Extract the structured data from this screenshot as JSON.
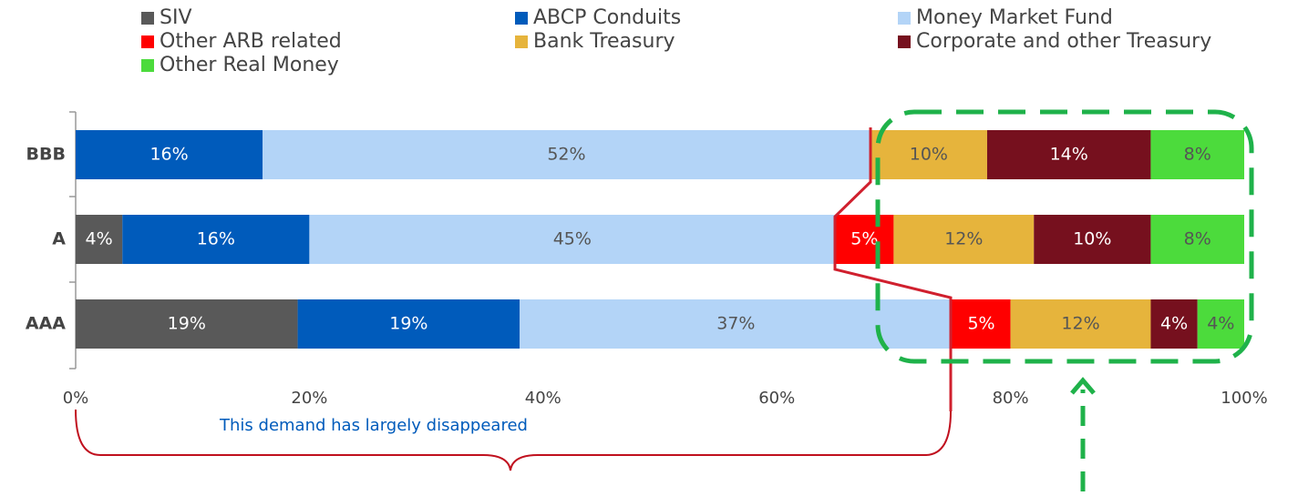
{
  "chart_data": {
    "type": "stacked_barh",
    "categories": [
      "BBB",
      "A",
      "AAA"
    ],
    "series": [
      {
        "name": "SIV",
        "color": "#595959",
        "values": [
          0,
          4,
          19
        ],
        "value_labels": [
          null,
          "4%",
          "19%"
        ]
      },
      {
        "name": "ABCP Conduits",
        "color": "#005bbb",
        "values": [
          16,
          16,
          19
        ],
        "value_labels": [
          "16%",
          "16%",
          "19%"
        ]
      },
      {
        "name": "Money Market Fund",
        "color": "#b3d4f7",
        "values": [
          52,
          45,
          37
        ],
        "value_labels": [
          "52%",
          "45%",
          "37%"
        ]
      },
      {
        "name": "Other ARB related",
        "color": "#ff0000",
        "values": [
          0,
          5,
          5
        ],
        "value_labels": [
          null,
          "5%",
          "5%"
        ]
      },
      {
        "name": "Bank Treasury",
        "color": "#e6b43c",
        "values": [
          10,
          12,
          12
        ],
        "value_labels": [
          "10%",
          "12%",
          "12%"
        ]
      },
      {
        "name": "Corporate and other Treasury",
        "color": "#76101e",
        "values": [
          14,
          10,
          4
        ],
        "value_labels": [
          "14%",
          "10%",
          "4%"
        ]
      },
      {
        "name": "Other Real Money",
        "color": "#4cdb3c",
        "values": [
          8,
          8,
          4
        ],
        "value_labels": [
          "8%",
          "8%",
          "4%"
        ]
      }
    ],
    "xlim": [
      0,
      100
    ],
    "xticks": [
      {
        "value": 0,
        "label": "0%"
      },
      {
        "value": 20,
        "label": "20%"
      },
      {
        "value": 40,
        "label": "40%"
      },
      {
        "value": 60,
        "label": "60%"
      },
      {
        "value": 80,
        "label": "80%"
      },
      {
        "value": 100,
        "label": "100%"
      }
    ],
    "annotation": "This demand has largely disappeared"
  }
}
